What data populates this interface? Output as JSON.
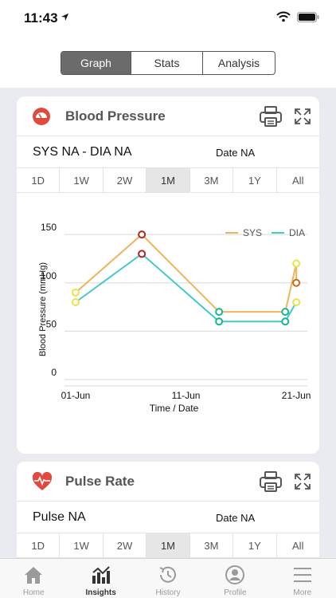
{
  "status_bar": {
    "time": "11:43"
  },
  "view_tabs": [
    "Graph",
    "Stats",
    "Analysis"
  ],
  "active_view": "Graph",
  "blood_pressure_card": {
    "title": "Blood Pressure",
    "reading": "SYS NA - DIA NA",
    "date": "Date NA",
    "ranges": [
      "1D",
      "1W",
      "2W",
      "1M",
      "3M",
      "1Y",
      "All"
    ],
    "active_range": "1M",
    "icon": "blood-pressure-gauge-icon"
  },
  "pulse_card": {
    "title": "Pulse Rate",
    "reading": "Pulse NA",
    "date": "Date NA",
    "ranges": [
      "1D",
      "1W",
      "2W",
      "1M",
      "3M",
      "1Y",
      "All"
    ],
    "active_range": "1M",
    "icon": "heart-pulse-icon"
  },
  "chart_data": {
    "type": "line",
    "xlabel": "Time / Date",
    "ylabel": "Blood Pressure (mmHg)",
    "x_ticks": [
      "01-Jun",
      "11-Jun",
      "21-Jun"
    ],
    "y_ticks": [
      0,
      50,
      100,
      150
    ],
    "ylim": [
      0,
      160
    ],
    "grid": true,
    "legend": "top-right",
    "series": [
      {
        "name": "SYS",
        "color": "#f0b45a",
        "x": [
          1,
          7,
          14,
          20,
          21,
          21
        ],
        "y": [
          90,
          150,
          70,
          70,
          120,
          100
        ]
      },
      {
        "name": "DIA",
        "color": "#45c7cf",
        "x": [
          1,
          7,
          14,
          20,
          21
        ],
        "y": [
          80,
          130,
          60,
          60,
          80
        ]
      }
    ]
  },
  "bottom_tabs": [
    "Home",
    "Insights",
    "History",
    "Profile",
    "More"
  ],
  "active_bottom_tab": "Insights",
  "colors": {
    "accent_red": "#e14b3f",
    "segment_active": "#6b6b6b",
    "background": "#e9ebf0"
  }
}
